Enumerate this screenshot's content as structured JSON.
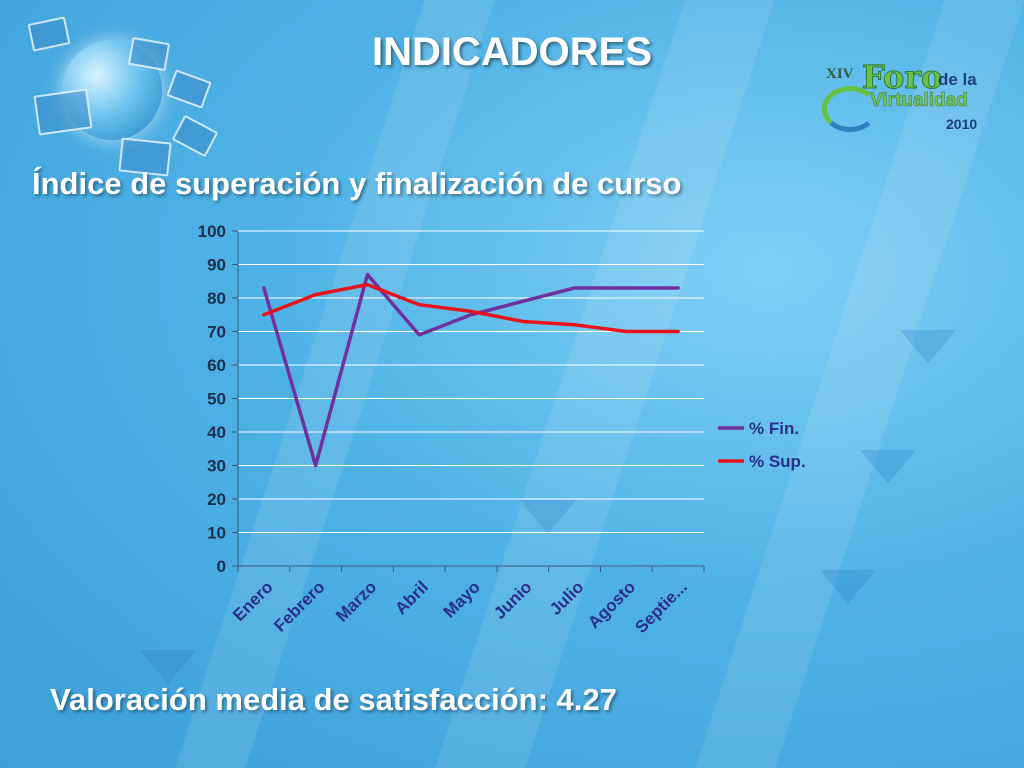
{
  "slide": {
    "title": "INDICADORES",
    "subtitle": "Índice de superación y finalización de curso",
    "footer": "Valoración media de satisfacción: 4.27"
  },
  "logo": {
    "xiv": "XIV",
    "foro": "Foro",
    "de_la": "de la",
    "virtualidad": "Virtualidad",
    "year": "2010"
  },
  "chart_data": {
    "type": "line",
    "categories": [
      "Enero",
      "Febrero",
      "Marzo",
      "Abril",
      "Mayo",
      "Junio",
      "Julio",
      "Agosto",
      "Septie..."
    ],
    "series": [
      {
        "name": "% Fin.",
        "color": "#7030a0",
        "values": [
          83,
          30,
          87,
          69,
          75,
          79,
          83,
          83,
          83
        ]
      },
      {
        "name": "% Sup.",
        "color": "#e8141c",
        "values": [
          75,
          81,
          84,
          78,
          76,
          73,
          72,
          70,
          70
        ]
      }
    ],
    "ylim": [
      0,
      100
    ],
    "yticks": [
      "0",
      "10",
      "20",
      "30",
      "40",
      "50",
      "60",
      "70",
      "80",
      "90",
      "100"
    ],
    "grid": true,
    "legend": "right"
  },
  "colors": {
    "background": "#4fb2e6",
    "text": "#ffffff",
    "gridline": "#ffffff",
    "tick_text": "#1f2d4d",
    "category_text": "#2b2f8a"
  }
}
